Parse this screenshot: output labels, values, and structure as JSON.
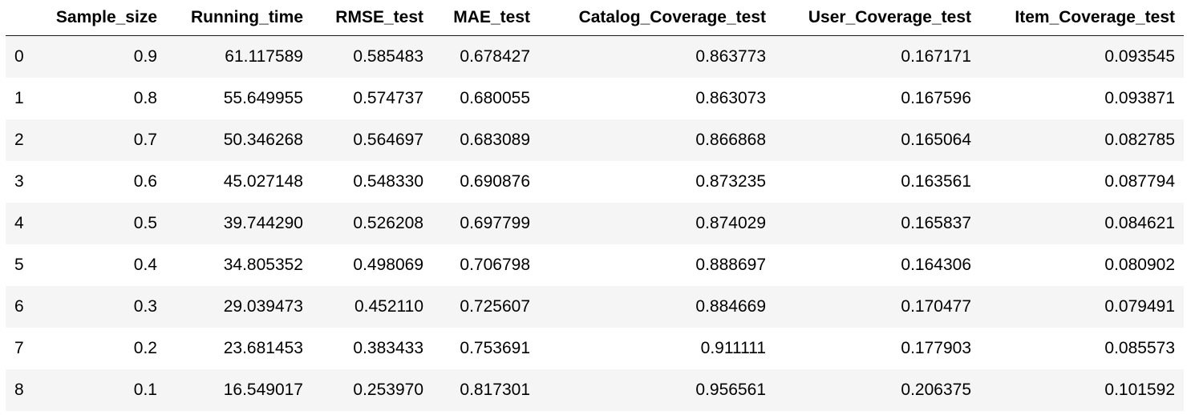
{
  "table": {
    "index_header": "",
    "columns": [
      "Sample_size",
      "Running_time",
      "RMSE_test",
      "MAE_test",
      "Catalog_Coverage_test",
      "User_Coverage_test",
      "Item_Coverage_test"
    ],
    "rows": [
      {
        "index": "0",
        "cells": [
          "0.9",
          "61.117589",
          "0.585483",
          "0.678427",
          "0.863773",
          "0.167171",
          "0.093545"
        ]
      },
      {
        "index": "1",
        "cells": [
          "0.8",
          "55.649955",
          "0.574737",
          "0.680055",
          "0.863073",
          "0.167596",
          "0.093871"
        ]
      },
      {
        "index": "2",
        "cells": [
          "0.7",
          "50.346268",
          "0.564697",
          "0.683089",
          "0.866868",
          "0.165064",
          "0.082785"
        ]
      },
      {
        "index": "3",
        "cells": [
          "0.6",
          "45.027148",
          "0.548330",
          "0.690876",
          "0.873235",
          "0.163561",
          "0.087794"
        ]
      },
      {
        "index": "4",
        "cells": [
          "0.5",
          "39.744290",
          "0.526208",
          "0.697799",
          "0.874029",
          "0.165837",
          "0.084621"
        ]
      },
      {
        "index": "5",
        "cells": [
          "0.4",
          "34.805352",
          "0.498069",
          "0.706798",
          "0.888697",
          "0.164306",
          "0.080902"
        ]
      },
      {
        "index": "6",
        "cells": [
          "0.3",
          "29.039473",
          "0.452110",
          "0.725607",
          "0.884669",
          "0.170477",
          "0.079491"
        ]
      },
      {
        "index": "7",
        "cells": [
          "0.2",
          "23.681453",
          "0.383433",
          "0.753691",
          "0.911111",
          "0.177903",
          "0.085573"
        ]
      },
      {
        "index": "8",
        "cells": [
          "0.1",
          "16.549017",
          "0.253970",
          "0.817301",
          "0.956561",
          "0.206375",
          "0.101592"
        ]
      }
    ]
  },
  "colors": {
    "stripe": "#f5f5f5",
    "header_rule": "#1a1a1a"
  }
}
